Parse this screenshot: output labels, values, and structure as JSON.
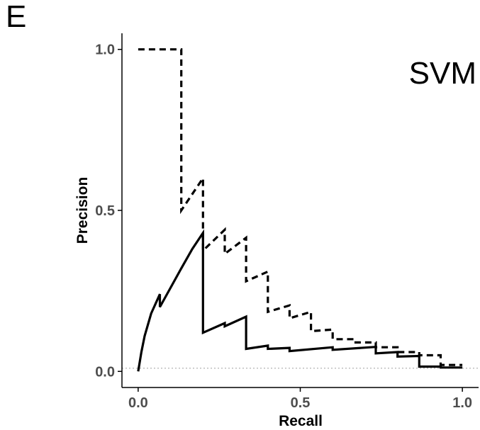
{
  "figure": {
    "panel_letter": "E",
    "model_label": "SVM"
  },
  "chart_data": {
    "type": "line",
    "title": "",
    "xlabel": "Recall",
    "ylabel": "Precision",
    "xlim": [
      -0.05,
      1.05
    ],
    "ylim": [
      -0.05,
      1.05
    ],
    "x_ticks": [
      0.0,
      0.5,
      1.0
    ],
    "x_tick_labels": [
      "0.0",
      "0.5",
      "1.0"
    ],
    "y_ticks": [
      0.0,
      0.5,
      1.0
    ],
    "y_tick_labels": [
      "0.0",
      "0.5",
      "1.0"
    ],
    "grid": false,
    "reference_line": {
      "y": 0.01,
      "style": "dotted",
      "color": "#b3b3b3"
    },
    "series": [
      {
        "line_style": "solid",
        "color": "#000000",
        "points": [
          [
            0.0,
            0.0
          ],
          [
            0.01,
            0.06
          ],
          [
            0.02,
            0.11
          ],
          [
            0.04,
            0.18
          ],
          [
            0.067,
            0.24
          ],
          [
            0.067,
            0.2
          ],
          [
            0.1,
            0.26
          ],
          [
            0.133,
            0.32
          ],
          [
            0.167,
            0.38
          ],
          [
            0.2,
            0.43
          ],
          [
            0.2,
            0.12
          ],
          [
            0.267,
            0.15
          ],
          [
            0.267,
            0.14
          ],
          [
            0.333,
            0.17
          ],
          [
            0.333,
            0.07
          ],
          [
            0.4,
            0.08
          ],
          [
            0.4,
            0.07
          ],
          [
            0.467,
            0.073
          ],
          [
            0.467,
            0.063
          ],
          [
            0.6,
            0.075
          ],
          [
            0.6,
            0.067
          ],
          [
            0.733,
            0.076
          ],
          [
            0.733,
            0.056
          ],
          [
            0.8,
            0.06
          ],
          [
            0.8,
            0.046
          ],
          [
            0.867,
            0.048
          ],
          [
            0.867,
            0.015
          ],
          [
            0.933,
            0.015
          ],
          [
            0.933,
            0.012
          ],
          [
            1.0,
            0.012
          ]
        ]
      },
      {
        "line_style": "dashed",
        "color": "#000000",
        "points": [
          [
            0.0,
            1.0
          ],
          [
            0.133,
            1.0
          ],
          [
            0.133,
            0.5
          ],
          [
            0.2,
            0.6
          ],
          [
            0.2,
            0.375
          ],
          [
            0.267,
            0.44
          ],
          [
            0.267,
            0.365
          ],
          [
            0.333,
            0.415
          ],
          [
            0.333,
            0.28
          ],
          [
            0.4,
            0.31
          ],
          [
            0.4,
            0.185
          ],
          [
            0.467,
            0.205
          ],
          [
            0.467,
            0.165
          ],
          [
            0.533,
            0.185
          ],
          [
            0.533,
            0.125
          ],
          [
            0.6,
            0.13
          ],
          [
            0.6,
            0.1
          ],
          [
            0.667,
            0.1
          ],
          [
            0.667,
            0.09
          ],
          [
            0.733,
            0.09
          ],
          [
            0.733,
            0.075
          ],
          [
            0.8,
            0.075
          ],
          [
            0.8,
            0.06
          ],
          [
            0.867,
            0.06
          ],
          [
            0.867,
            0.05
          ],
          [
            0.933,
            0.05
          ],
          [
            0.933,
            0.02
          ],
          [
            1.0,
            0.02
          ]
        ]
      }
    ]
  }
}
